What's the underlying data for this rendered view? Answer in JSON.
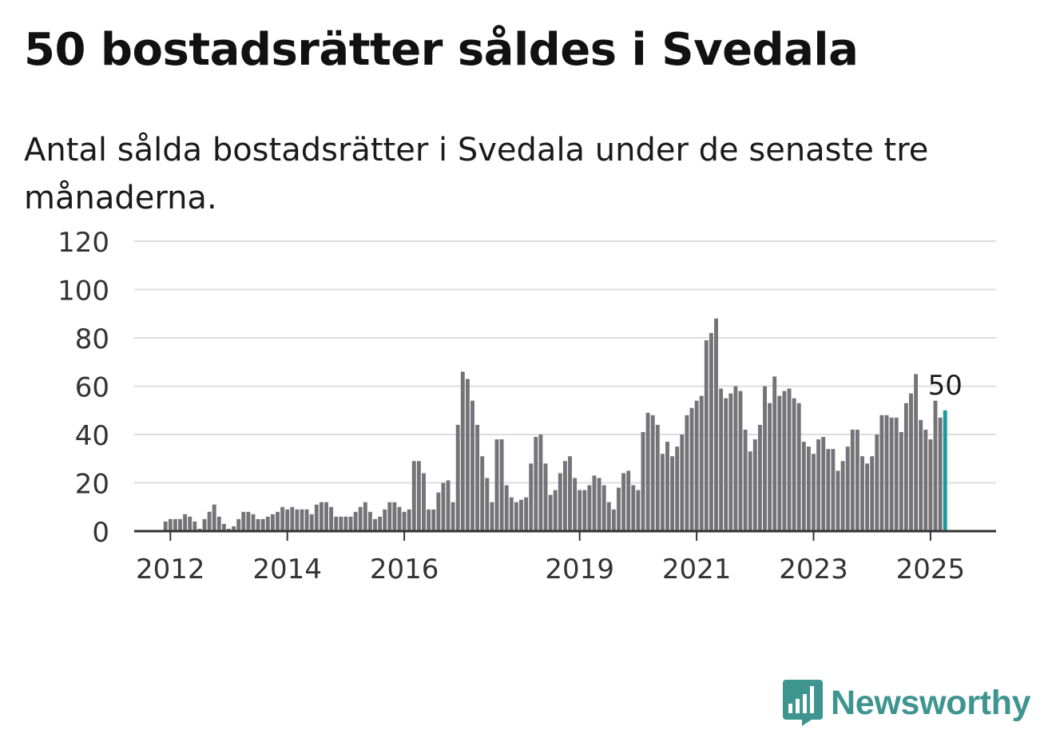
{
  "header": {
    "title": "50 bostadsrätter såldes i Svedala",
    "subtitle": "Antal sålda bostadsrätter i Svedala under de senaste tre månaderna."
  },
  "logo": {
    "text": "Newsworthy",
    "icon": "newsworthy-bar-chart-icon"
  },
  "colors": {
    "bar": "#747377",
    "highlight": "#1a9c9c",
    "grid": "#dddddd",
    "axis": "#333333",
    "brand": "#3e9590"
  },
  "chart_data": {
    "type": "bar",
    "title": "50 bostadsrätter såldes i Svedala",
    "subtitle": "Antal sålda bostadsrätter i Svedala under de senaste tre månaderna.",
    "xlabel": "",
    "ylabel": "",
    "ylim": [
      0,
      120
    ],
    "yticks": [
      0,
      20,
      40,
      60,
      80,
      100,
      120
    ],
    "xticks": [
      "2012",
      "2014",
      "2016",
      "2019",
      "2021",
      "2023",
      "2025"
    ],
    "start": "2011-05",
    "frequency": "monthly",
    "grid": true,
    "highlight_label": "50",
    "values": [
      0,
      0,
      0,
      0,
      0,
      0,
      0,
      4,
      5,
      5,
      5,
      7,
      6,
      4,
      1,
      5,
      8,
      11,
      6,
      3,
      1,
      2,
      5,
      8,
      8,
      7,
      5,
      5,
      6,
      7,
      8,
      10,
      9,
      10,
      9,
      9,
      9,
      7,
      11,
      12,
      12,
      10,
      6,
      6,
      6,
      6,
      8,
      10,
      12,
      8,
      5,
      6,
      9,
      12,
      12,
      10,
      8,
      9,
      29,
      29,
      24,
      9,
      9,
      16,
      20,
      21,
      12,
      44,
      66,
      63,
      54,
      44,
      31,
      22,
      12,
      38,
      38,
      19,
      14,
      12,
      13,
      14,
      28,
      39,
      40,
      28,
      15,
      17,
      24,
      29,
      31,
      22,
      17,
      17,
      19,
      23,
      22,
      19,
      12,
      9,
      18,
      24,
      25,
      19,
      17,
      41,
      49,
      48,
      44,
      32,
      37,
      31,
      35,
      40,
      48,
      51,
      54,
      56,
      79,
      82,
      88,
      59,
      55,
      57,
      60,
      58,
      42,
      33,
      38,
      44,
      60,
      53,
      64,
      56,
      58,
      59,
      55,
      53,
      37,
      35,
      32,
      38,
      39,
      34,
      34,
      25,
      29,
      35,
      42,
      42,
      31,
      28,
      31,
      40,
      48,
      48,
      47,
      47,
      41,
      53,
      57,
      65,
      46,
      42,
      38,
      54,
      47,
      50
    ]
  }
}
